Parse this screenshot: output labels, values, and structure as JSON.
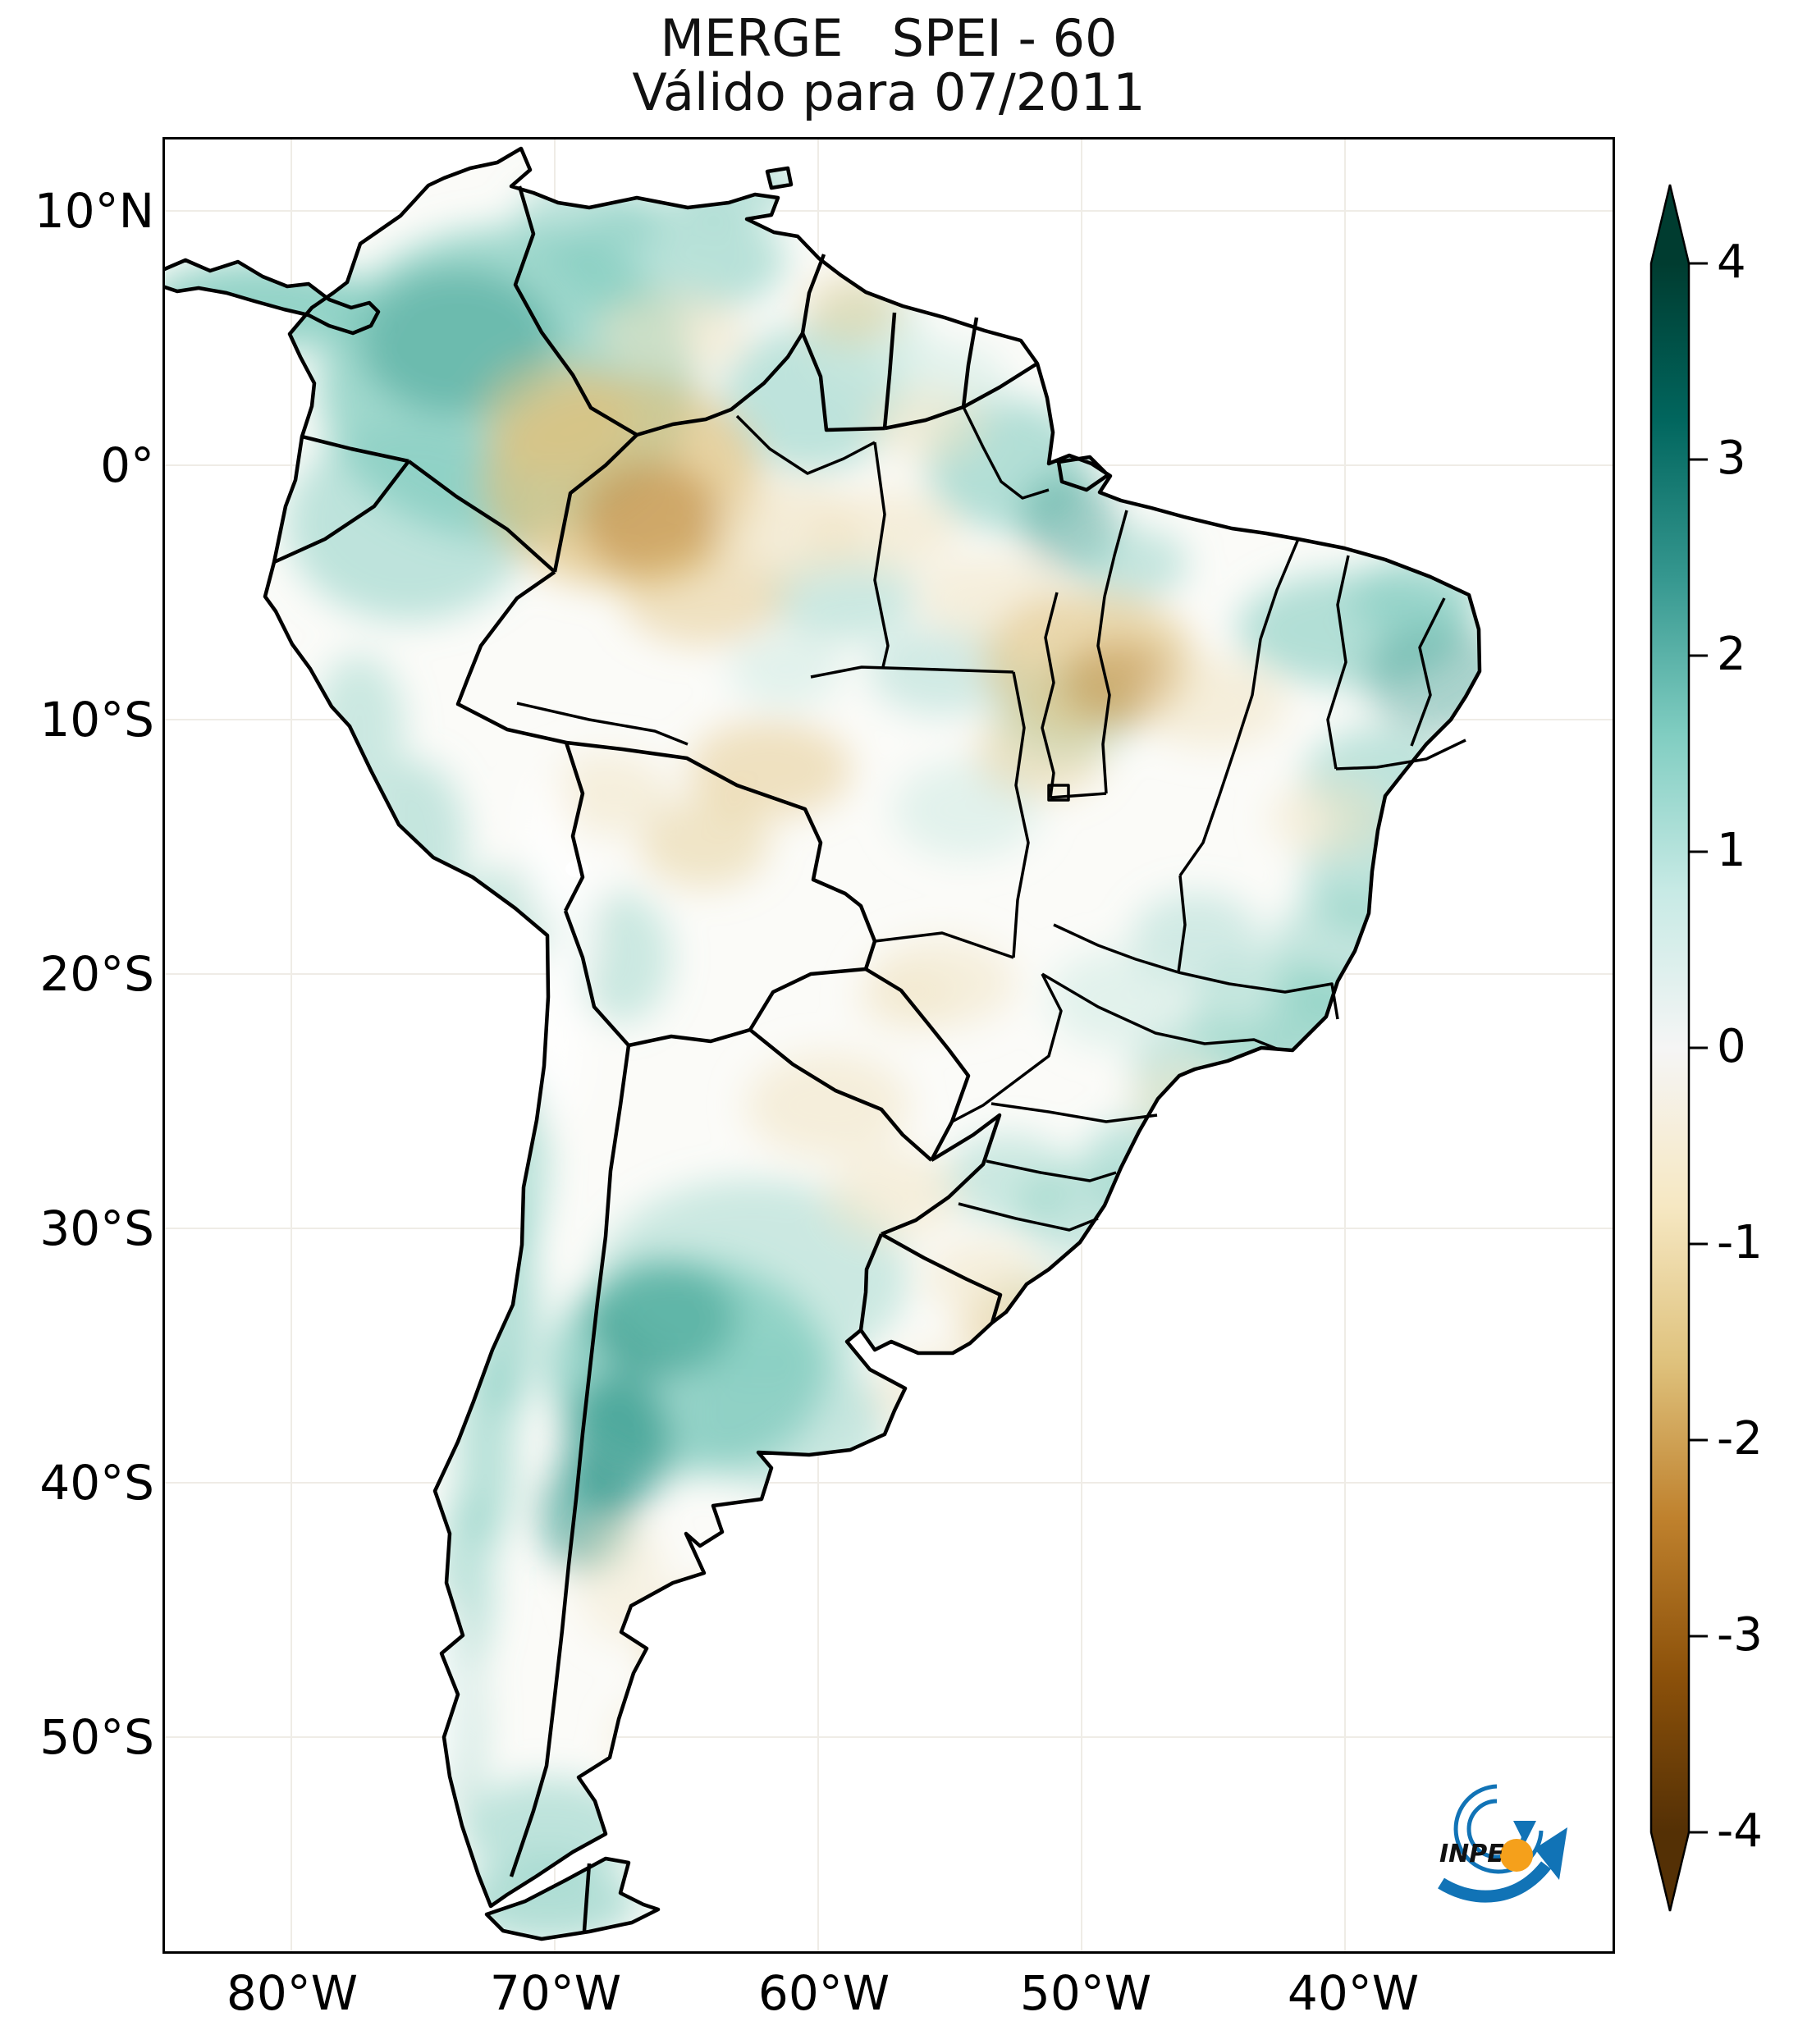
{
  "title": {
    "line1": "MERGE   SPEI - 60",
    "line2": "Válido para 07/2011"
  },
  "axes": {
    "lat_ticks": [
      "10°N",
      "0°",
      "10°S",
      "20°S",
      "30°S",
      "40°S",
      "50°S"
    ],
    "lon_ticks": [
      "80°W",
      "70°W",
      "60°W",
      "50°W",
      "40°W"
    ]
  },
  "colorbar": {
    "tick_labels": [
      "4",
      "3",
      "2",
      "1",
      "0",
      "-1",
      "-2",
      "-3",
      "-4"
    ],
    "value_range": [
      -4,
      4
    ],
    "colormap_name": "BrBG (brown = dry, teal/green = wet)",
    "colormap_hex_top_to_bottom": [
      "#003c30",
      "#01665e",
      "#35978f",
      "#80cdc1",
      "#c7eae5",
      "#f5f5f5",
      "#f6e8c3",
      "#dfc27d",
      "#bf812d",
      "#8c510a",
      "#543005"
    ]
  },
  "logo": {
    "text": "INPE",
    "blue": "#1173b6",
    "orange": "#f5a01b"
  },
  "map_data": {
    "type": "geospatial-raster",
    "variable": "SPEI-60 (60-month Standardized Precipitation-Evapotranspiration Index, MERGE data)",
    "region": "South America",
    "valid_for": "07/2011",
    "lon_extent_shown": [
      "85°W",
      "30°W"
    ],
    "lat_extent_shown": [
      "13°N",
      "58°S"
    ],
    "notable_wet_anomalies": [
      "Colombia and western Venezuela (SPEI ~ +1 to +2)",
      "Panama isthmus",
      "Amapá / north of the Amazon mouth",
      "coastal Ceará / Rio Grande do Norte (NE Brazil)",
      "eastern Bahia, Minas Gerais and Brazilian east coast",
      "São Paulo / Paraná / Santa Catarina coast",
      "northwestern Argentina Andes foothills (strong, SPEI ~ +2)",
      "central Chile coastal strip",
      "southern Patagonia and Tierra del Fuego"
    ],
    "notable_dry_anomalies": [
      "upper Rio Negro region, NW Amazon (strong, SPEI ~ -2)",
      "southeastern Pará / Tocantins (strong)",
      "Rondônia and adjacent areas (moderate)",
      "central Argentina pampas (moderate)",
      "western Rio Grande do Sul / Uruguay (mild)",
      "eastern Venezuela llanos and Guyana interior (mild)"
    ]
  }
}
